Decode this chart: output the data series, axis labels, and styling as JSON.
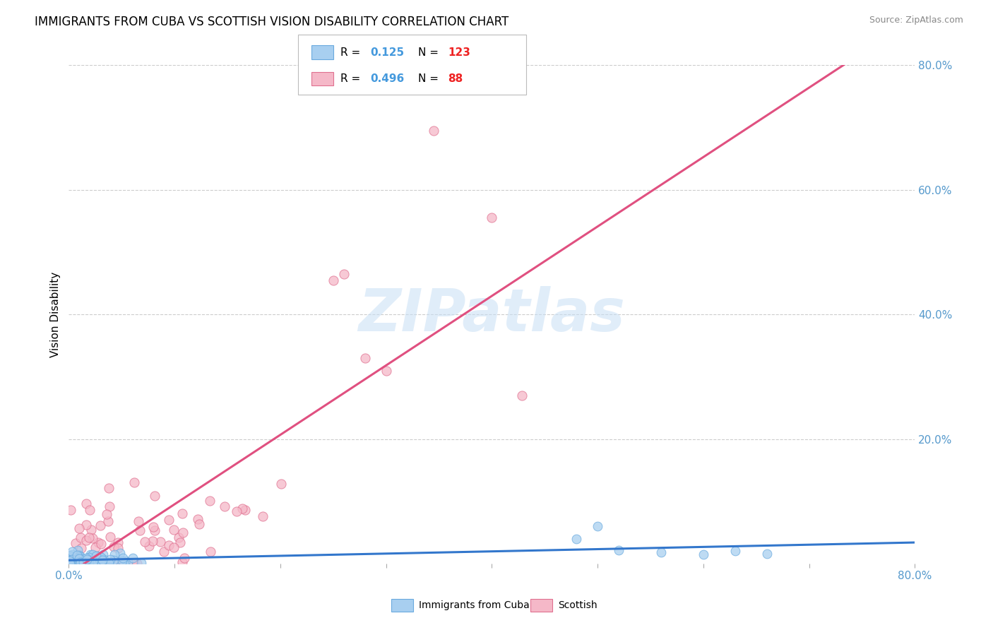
{
  "title": "IMMIGRANTS FROM CUBA VS SCOTTISH VISION DISABILITY CORRELATION CHART",
  "source": "Source: ZipAtlas.com",
  "ylabel": "Vision Disability",
  "series": [
    {
      "name": "Immigrants from Cuba",
      "R": 0.125,
      "N": 123,
      "color": "#a8cff0",
      "edge_color": "#6aaade",
      "line_color": "#3377cc"
    },
    {
      "name": "Scottish",
      "R": 0.496,
      "N": 88,
      "color": "#f5b8c8",
      "edge_color": "#e07090",
      "line_color": "#e05080"
    }
  ],
  "legend_R_color": "#4499dd",
  "legend_N_color": "#ee2222",
  "background_color": "#ffffff",
  "grid_color": "#cccccc",
  "title_fontsize": 12,
  "axis_label_color": "#5599cc",
  "xlim": [
    0.0,
    0.8
  ],
  "ylim": [
    0.0,
    0.8
  ]
}
